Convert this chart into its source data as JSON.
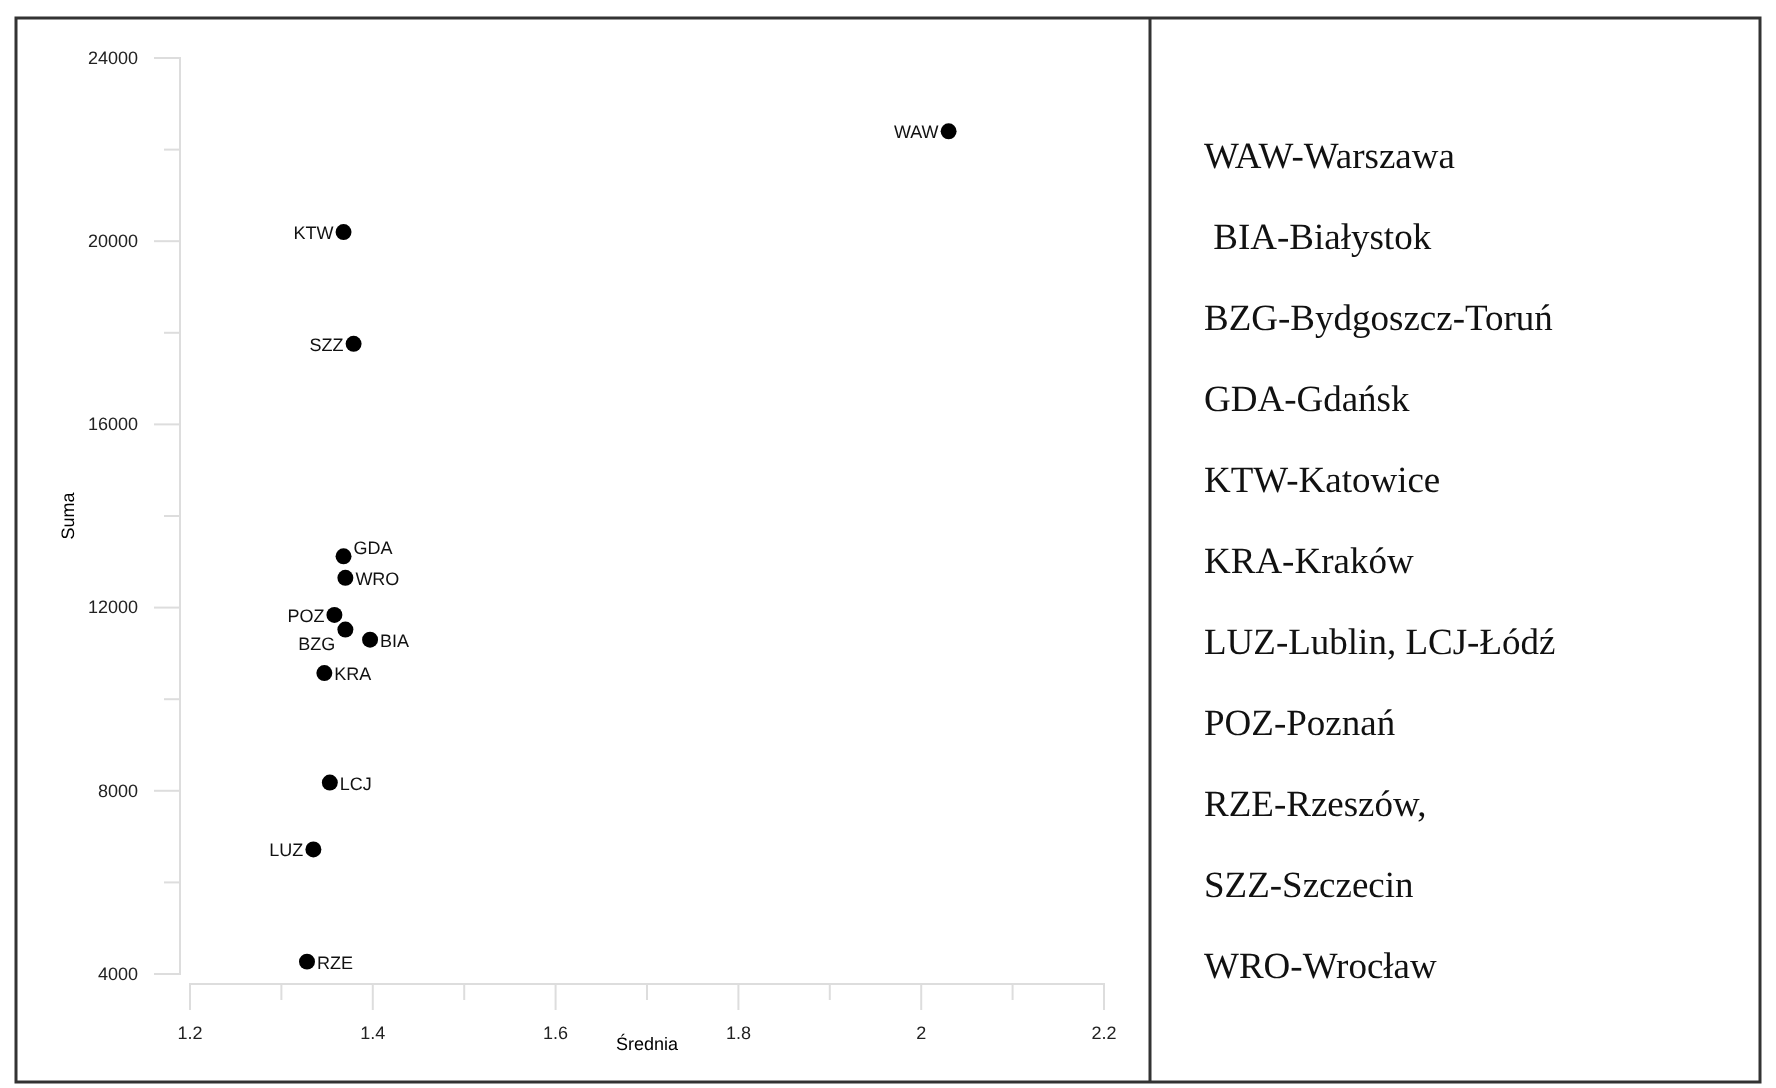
{
  "chart_data": {
    "type": "scatter",
    "xlabel": "Średnia",
    "ylabel": "Suma",
    "x": [
      2.03,
      1.368,
      1.379,
      1.368,
      1.37,
      1.358,
      1.37,
      1.397,
      1.347,
      1.353,
      1.335,
      1.328
    ],
    "values": [
      22400,
      20200,
      17760,
      13120,
      12650,
      11840,
      11520,
      11300,
      10570,
      8180,
      6720,
      4270
    ],
    "color": "#000000",
    "marker": "circle",
    "xlim": [
      1.2,
      2.2
    ],
    "xticks": [
      1.2,
      {
        "value": 1.3,
        "label": null
      },
      1.4,
      {
        "value": 1.5,
        "label": null
      },
      1.6,
      {
        "value": 1.7,
        "label": null
      },
      1.8,
      {
        "value": 1.9,
        "label": null
      },
      2,
      {
        "value": 2.1,
        "label": null
      },
      2.2
    ],
    "ylim": [
      4000,
      24000
    ],
    "yticks": [
      4000,
      {
        "value": 6000,
        "label": null
      },
      8000,
      {
        "value": 10000,
        "label": null
      },
      12000,
      {
        "value": 14000,
        "label": null
      },
      16000,
      {
        "value": 18000,
        "label": null
      },
      20000,
      {
        "value": 22000,
        "label": null
      },
      24000
    ],
    "grid": false,
    "annotations": [
      {
        "text": "WAW",
        "x": 2.03,
        "y": 22400
      },
      {
        "text": "KTW",
        "x": 1.368,
        "y": 20200
      },
      {
        "text": "SZZ",
        "x": 1.379,
        "y": 17760
      },
      {
        "text": "GDA",
        "x": 1.368,
        "y": 13120
      },
      {
        "text": "WRO",
        "x": 1.37,
        "y": 12650
      },
      {
        "text": "POZ",
        "x": 1.358,
        "y": 11840
      },
      {
        "text": "BZG",
        "x": 1.37,
        "y": 11520
      },
      {
        "text": "BIA",
        "x": 1.397,
        "y": 11300
      },
      {
        "text": "KRA",
        "x": 1.347,
        "y": 10570
      },
      {
        "text": "LCJ",
        "x": 1.353,
        "y": 8180
      },
      {
        "text": "LUZ",
        "x": 1.335,
        "y": 6720
      },
      {
        "text": "RZE",
        "x": 1.328,
        "y": 4270
      },
      "WAW-Warszawa",
      " BIA-Białystok",
      "BZG-Bydgoszcz-Toruń",
      "GDA-Gdańsk",
      "KTW-Katowice",
      "KRA-Kraków",
      "LUZ-Lublin, LCJ-Łódź",
      "POZ-Poznań",
      "RZE-Rzeszów,",
      "SZZ-Szczecin",
      "WRO-Wrocław"
    ]
  }
}
